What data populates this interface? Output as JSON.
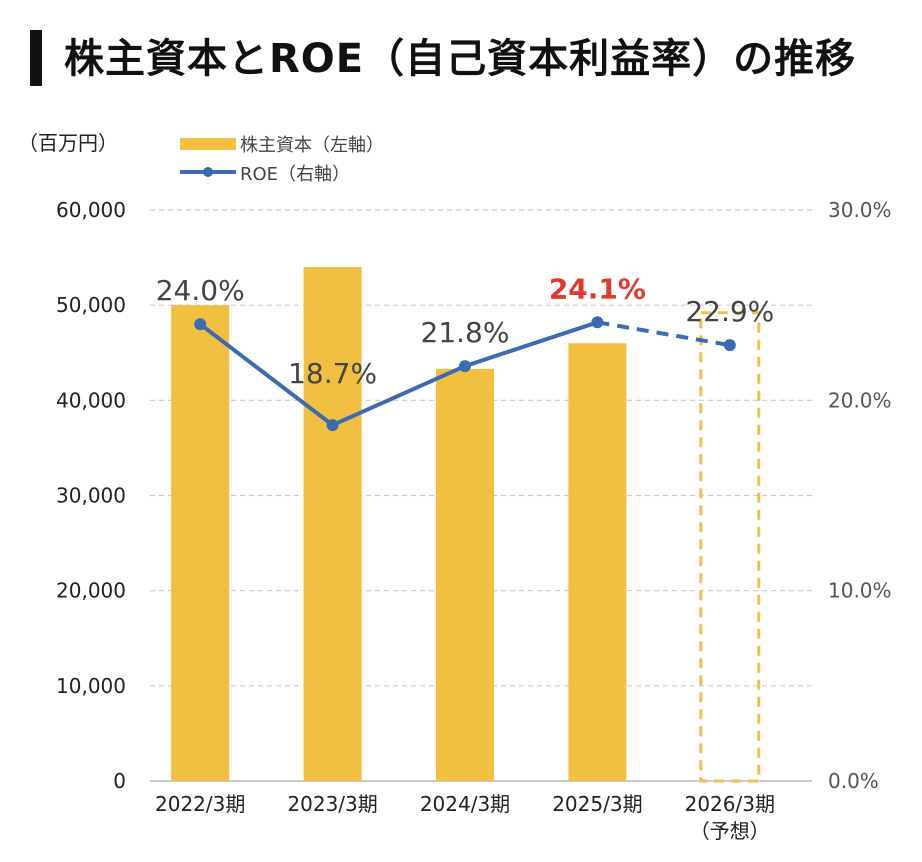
{
  "title": "株主資本とROE（自己資本利益率）の推移",
  "chart_data": {
    "type": "bar",
    "unit_left": "（百万円）",
    "categories": [
      "2022/3期",
      "2023/3期",
      "2024/3期",
      "2025/3期",
      "2026/3期"
    ],
    "category_notes": [
      "",
      "",
      "",
      "",
      "（予想）"
    ],
    "series": [
      {
        "name": "株主資本（左軸）",
        "type": "bar",
        "axis": "left",
        "values": [
          50000,
          54000,
          43300,
          46000,
          null
        ],
        "forecast_box": [
          false,
          false,
          false,
          false,
          true
        ]
      },
      {
        "name": "ROE（右軸）",
        "type": "line",
        "axis": "right",
        "values": [
          24.0,
          18.7,
          21.8,
          24.1,
          22.9
        ],
        "labels": [
          "24.0%",
          "18.7%",
          "21.8%",
          "24.1%",
          "22.9%"
        ],
        "highlight": [
          false,
          false,
          false,
          true,
          false
        ],
        "dashed_last_segment": true
      }
    ],
    "y_left": {
      "min": 0,
      "max": 60000,
      "ticks": [
        "0",
        "10,000",
        "20,000",
        "30,000",
        "40,000",
        "50,000",
        "60,000"
      ]
    },
    "y_right": {
      "min": 0,
      "max": 30,
      "ticks": [
        "0.0%",
        "10.0%",
        "20.0%",
        "30.0%"
      ]
    },
    "grid": true,
    "legend_position": "top-left",
    "colors": {
      "bar": "#f2c040",
      "line": "#3b6bb0",
      "highlight": "#e03a2e",
      "grid": "#cccccc"
    }
  }
}
